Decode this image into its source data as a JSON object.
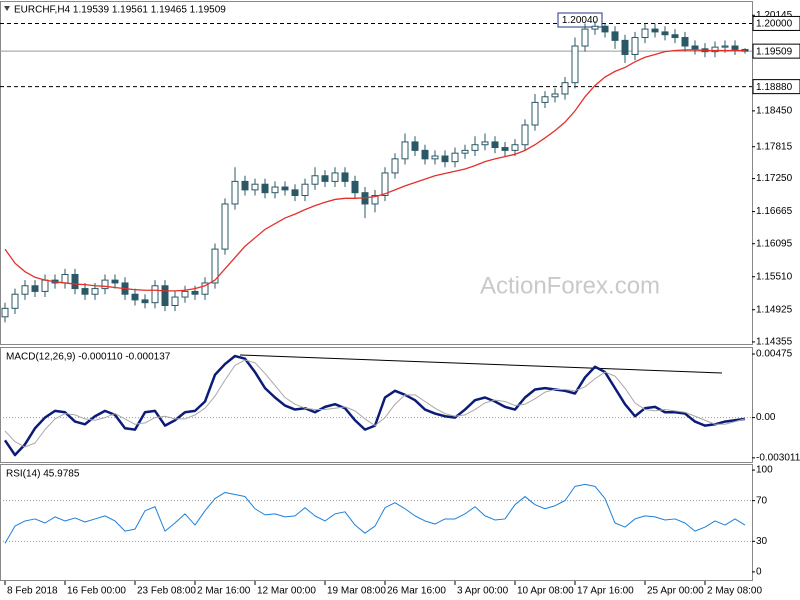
{
  "chart_data": [
    {
      "type": "candlestick",
      "title": "EURCHF,H4  1.19539 1.19561 1.19465 1.19509",
      "watermark": "ActionForex.com",
      "peak_label": "1.20040",
      "color": "#2b5866",
      "xlim": [
        -0.5,
        74.7
      ],
      "ylim": [
        1.143,
        1.2038
      ],
      "yticks": [
        1.20145,
        {
          "value": 1.1845,
          "label": "1.18450"
        },
        1.17815,
        {
          "value": 1.1725,
          "label": "1.17250"
        },
        1.16665,
        1.16095,
        {
          "value": 1.1551,
          "label": "1.15510"
        },
        1.14925,
        1.14355
      ],
      "levels": [
        {
          "value": 1.2,
          "label": "1.20000",
          "style": "dashed"
        },
        {
          "value": 1.19509,
          "style": "solid"
        },
        {
          "value": 1.1888,
          "label": "1.18880",
          "style": "dashed"
        }
      ],
      "open": [
        1.148,
        1.1495,
        1.152,
        1.1535,
        1.1525,
        1.1545,
        1.154,
        1.1555,
        1.153,
        1.152,
        1.153,
        1.1545,
        1.154,
        1.152,
        1.151,
        1.1505,
        1.1535,
        1.15,
        1.1515,
        1.1525,
        1.152,
        1.154,
        1.16,
        1.168,
        1.172,
        1.1705,
        1.1715,
        1.17,
        1.171,
        1.1705,
        1.1695,
        1.1715,
        1.173,
        1.172,
        1.1735,
        1.172,
        1.17,
        1.168,
        1.1695,
        1.1735,
        1.176,
        1.179,
        1.1775,
        1.176,
        1.1765,
        1.1755,
        1.177,
        1.1775,
        1.1785,
        1.179,
        1.178,
        1.1775,
        1.1785,
        1.182,
        1.186,
        1.187,
        1.1875,
        1.1895,
        1.196,
        1.199,
        1.1995,
        1.1985,
        1.197,
        1.1945,
        1.1975,
        1.199,
        1.1985,
        1.198,
        1.1975,
        1.196,
        1.1955,
        1.195,
        1.1958,
        1.196,
        1.19539
      ],
      "high": [
        1.1505,
        1.153,
        1.1545,
        1.1545,
        1.1555,
        1.1555,
        1.1565,
        1.1565,
        1.154,
        1.154,
        1.1555,
        1.1555,
        1.155,
        1.153,
        1.152,
        1.1545,
        1.1545,
        1.1525,
        1.1535,
        1.1535,
        1.155,
        1.161,
        1.169,
        1.1745,
        1.173,
        1.1725,
        1.1725,
        1.172,
        1.172,
        1.1715,
        1.1725,
        1.1745,
        1.174,
        1.1745,
        1.1745,
        1.173,
        1.171,
        1.1705,
        1.1745,
        1.177,
        1.1805,
        1.18,
        1.1785,
        1.1775,
        1.1775,
        1.178,
        1.1785,
        1.18,
        1.1805,
        1.18,
        1.179,
        1.1795,
        1.183,
        1.1875,
        1.188,
        1.1885,
        1.1905,
        1.1975,
        1.2,
        1.2004,
        1.2,
        1.1995,
        1.198,
        1.1985,
        1.2,
        1.2,
        1.1995,
        1.199,
        1.1985,
        1.197,
        1.1965,
        1.1968,
        1.197,
        1.197,
        1.19561
      ],
      "low": [
        1.147,
        1.1485,
        1.151,
        1.1515,
        1.1515,
        1.153,
        1.153,
        1.152,
        1.151,
        1.151,
        1.152,
        1.153,
        1.151,
        1.15,
        1.1495,
        1.1495,
        1.149,
        1.149,
        1.1505,
        1.151,
        1.151,
        1.153,
        1.159,
        1.167,
        1.1695,
        1.1695,
        1.169,
        1.169,
        1.1695,
        1.1685,
        1.1685,
        1.1705,
        1.171,
        1.171,
        1.171,
        1.169,
        1.1655,
        1.1665,
        1.1685,
        1.1725,
        1.175,
        1.1765,
        1.175,
        1.175,
        1.1745,
        1.1745,
        1.176,
        1.1765,
        1.1775,
        1.177,
        1.1765,
        1.1765,
        1.1775,
        1.181,
        1.185,
        1.186,
        1.1865,
        1.1885,
        1.195,
        1.198,
        1.1975,
        1.1955,
        1.193,
        1.1935,
        1.1965,
        1.1975,
        1.197,
        1.1965,
        1.195,
        1.1945,
        1.194,
        1.194,
        1.1948,
        1.1944,
        1.19465
      ],
      "close": [
        1.1495,
        1.152,
        1.1535,
        1.1525,
        1.1545,
        1.154,
        1.1555,
        1.153,
        1.152,
        1.153,
        1.1545,
        1.154,
        1.152,
        1.151,
        1.1505,
        1.1535,
        1.15,
        1.1515,
        1.1525,
        1.152,
        1.154,
        1.16,
        1.168,
        1.172,
        1.1705,
        1.1715,
        1.17,
        1.171,
        1.1705,
        1.1695,
        1.1715,
        1.173,
        1.172,
        1.1735,
        1.172,
        1.17,
        1.168,
        1.1695,
        1.1735,
        1.176,
        1.179,
        1.1775,
        1.176,
        1.1765,
        1.1755,
        1.177,
        1.1775,
        1.1785,
        1.179,
        1.178,
        1.1775,
        1.1785,
        1.182,
        1.186,
        1.187,
        1.1875,
        1.1895,
        1.196,
        1.199,
        1.1995,
        1.1985,
        1.197,
        1.1945,
        1.1975,
        1.199,
        1.1985,
        1.198,
        1.1975,
        1.196,
        1.1955,
        1.195,
        1.1958,
        1.196,
        1.1954,
        1.19509
      ],
      "overlay": {
        "color": "#e3302b",
        "values": [
          1.16,
          1.1575,
          1.156,
          1.155,
          1.1545,
          1.1542,
          1.154,
          1.1538,
          1.1537,
          1.1535,
          1.1534,
          1.1532,
          1.153,
          1.1528,
          1.1527,
          1.1527,
          1.1526,
          1.1526,
          1.1527,
          1.153,
          1.1535,
          1.1545,
          1.1565,
          1.1585,
          1.1605,
          1.162,
          1.1635,
          1.1645,
          1.1655,
          1.1662,
          1.167,
          1.1677,
          1.1683,
          1.1688,
          1.169,
          1.169,
          1.1691,
          1.1693,
          1.1698,
          1.1705,
          1.1712,
          1.1718,
          1.1724,
          1.173,
          1.1734,
          1.1738,
          1.1742,
          1.1748,
          1.1755,
          1.176,
          1.1764,
          1.1768,
          1.1775,
          1.1785,
          1.1797,
          1.181,
          1.1825,
          1.1845,
          1.187,
          1.189,
          1.1905,
          1.1915,
          1.1922,
          1.1932,
          1.194,
          1.1945,
          1.195,
          1.1952,
          1.1953,
          1.1953,
          1.1952,
          1.1952,
          1.1952,
          1.1952,
          1.1952
        ]
      }
    },
    {
      "type": "line",
      "title": "MACD(12,26,9) -0.000110 -0.000137",
      "xlim": [
        -0.5,
        74.7
      ],
      "ylim": [
        -0.00332,
        0.0052
      ],
      "yticks": [
        0.00475,
        {
          "value": 0,
          "label": "0.00"
        },
        -0.003011
      ],
      "levels": [
        0
      ],
      "series": [
        {
          "color": "#0b1c78",
          "width": 2.5,
          "values": [
            -0.0017,
            -0.0028,
            -0.002,
            -0.0008,
            0.0,
            0.0005,
            0.0004,
            -0.0003,
            -0.0005,
            0.0001,
            0.0005,
            0.0002,
            -0.0008,
            -0.0009,
            0.0004,
            0.0005,
            -0.0006,
            -0.0002,
            0.0004,
            0.0005,
            0.0012,
            0.0032,
            0.004,
            0.0046,
            0.0044,
            0.0034,
            0.0022,
            0.0015,
            0.0009,
            0.0006,
            0.0007,
            0.0004,
            0.0008,
            0.001,
            0.0007,
            -0.0002,
            -0.0009,
            -0.0006,
            0.0015,
            0.002,
            0.0017,
            0.0013,
            0.0006,
            0.0003,
            0.0001,
            0.0,
            0.0006,
            0.0013,
            0.0015,
            0.0012,
            0.0008,
            0.0006,
            0.0015,
            0.0021,
            0.0022,
            0.0021,
            0.002,
            0.0018,
            0.003,
            0.0038,
            0.0034,
            0.0022,
            0.001,
            0.0001,
            0.0007,
            0.0008,
            0.0004,
            0.0004,
            0.0003,
            -0.0003,
            -0.0006,
            -0.0005,
            -0.0003,
            -0.0002,
            -0.0001
          ]
        },
        {
          "color": "#a8a8a8",
          "width": 1,
          "values": [
            -0.001,
            -0.0018,
            -0.0022,
            -0.0019,
            -0.0009,
            -0.0001,
            0.0003,
            0.0002,
            -0.0001,
            -0.0002,
            0.0,
            0.0003,
            -0.0001,
            -0.0005,
            -0.0004,
            0.0,
            0.0001,
            -0.0001,
            -0.0001,
            0.0002,
            0.0007,
            0.0016,
            0.0028,
            0.0039,
            0.0043,
            0.0041,
            0.0033,
            0.0024,
            0.0015,
            0.001,
            0.0007,
            0.0006,
            0.0006,
            0.0007,
            0.0008,
            0.0005,
            -0.0001,
            -0.0006,
            0.0,
            0.001,
            0.0017,
            0.0017,
            0.0012,
            0.0007,
            0.0003,
            0.0001,
            0.0002,
            0.0006,
            0.0011,
            0.0013,
            0.0012,
            0.0009,
            0.001,
            0.0014,
            0.0019,
            0.0021,
            0.0021,
            0.002,
            0.0023,
            0.0029,
            0.0034,
            0.0031,
            0.0022,
            0.0011,
            0.0006,
            0.0005,
            0.0006,
            0.0005,
            0.0004,
            0.0001,
            -0.0002,
            -0.0005,
            -0.0005,
            -0.0003,
            -0.0001
          ]
        }
      ]
    },
    {
      "type": "line",
      "title": "RSI(14) 45.9785",
      "xlim": [
        -0.5,
        74.7
      ],
      "ylim": [
        -8,
        105
      ],
      "yticks": [
        100,
        70,
        30,
        0
      ],
      "levels": [
        70,
        30
      ],
      "xticks": [
        {
          "value": 0,
          "label": "8 Feb 2018"
        },
        {
          "value": 6,
          "label": "16 Feb 00:00"
        },
        {
          "value": 13,
          "label": "23 Feb 08:00"
        },
        {
          "value": 19,
          "label": "2 Mar 16:00"
        },
        {
          "value": 25,
          "label": "12 Mar 00:00"
        },
        {
          "value": 32,
          "label": "19 Mar 08:00"
        },
        {
          "value": 38,
          "label": "26 Mar 16:00"
        },
        {
          "value": 45,
          "label": "3 Apr 00:00"
        },
        {
          "value": 51,
          "label": "10 Apr 08:00"
        },
        {
          "value": 57,
          "label": "17 Apr 16:00"
        },
        {
          "value": 64,
          "label": "25 Apr 00:00"
        },
        {
          "value": 70,
          "label": "2 May 08:00"
        }
      ],
      "series": [
        {
          "color": "#1e80dc",
          "width": 1,
          "values": [
            28,
            45,
            50,
            52,
            48,
            54,
            50,
            53,
            49,
            52,
            55,
            50,
            40,
            42,
            60,
            64,
            40,
            48,
            57,
            46,
            60,
            72,
            78,
            76,
            74,
            62,
            56,
            57,
            54,
            55,
            63,
            55,
            50,
            57,
            59,
            46,
            38,
            45,
            63,
            68,
            62,
            55,
            50,
            47,
            52,
            52,
            57,
            64,
            55,
            51,
            52,
            66,
            74,
            66,
            62,
            65,
            70,
            84,
            86,
            84,
            72,
            48,
            44,
            52,
            55,
            54,
            51,
            52,
            48,
            40,
            44,
            50,
            46,
            52,
            46
          ]
        }
      ]
    }
  ]
}
